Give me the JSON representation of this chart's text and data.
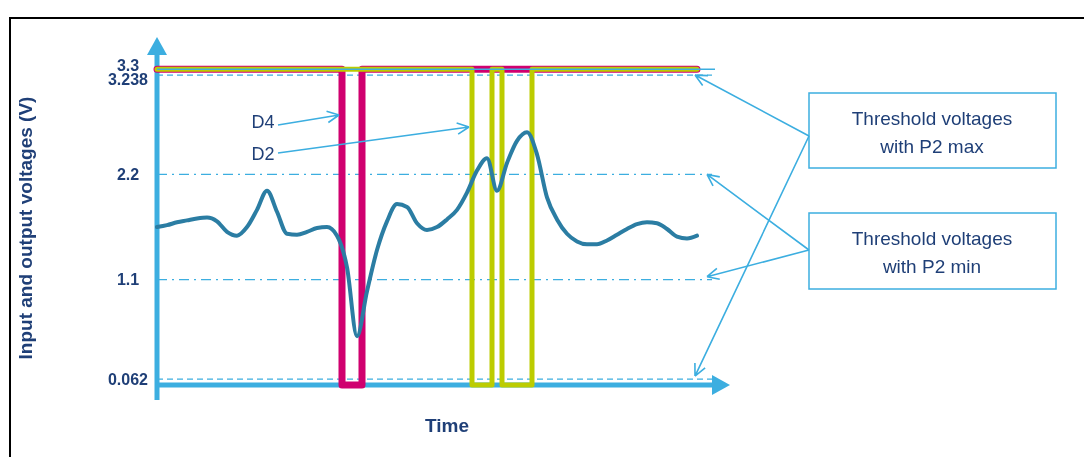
{
  "chart_data": {
    "type": "line",
    "xlabel": "Time",
    "ylabel": "Input and output voltages (V)",
    "categories": [
      null,
      null,
      null,
      null,
      null,
      null,
      null,
      null,
      null,
      null,
      null,
      null,
      null,
      null,
      null,
      null,
      null,
      null,
      null,
      null,
      null,
      null,
      null,
      null,
      null,
      null,
      null,
      null,
      null,
      null,
      null,
      null,
      null,
      null,
      null,
      null,
      null,
      null,
      null,
      null,
      null,
      null,
      null,
      null,
      null,
      null,
      null,
      null,
      null,
      null,
      null,
      null,
      null,
      null,
      null
    ],
    "series": [
      {
        "type": "line",
        "color": "#2b7da3",
        "values": [
          1.65,
          1.67,
          1.7,
          1.72,
          1.74,
          1.75,
          1.71,
          1.6,
          1.56,
          1.65,
          1.83,
          2.03,
          1.81,
          1.58,
          1.57,
          1.6,
          1.64,
          1.65,
          1.56,
          1.23,
          0.51,
          0.98,
          1.41,
          1.71,
          1.89,
          1.86,
          1.69,
          1.62,
          1.65,
          1.73,
          1.83,
          2.01,
          2.24,
          2.37,
          2.03,
          2.32,
          2.55,
          2.64,
          2.41,
          1.96,
          1.73,
          1.58,
          1.5,
          1.47,
          1.47,
          1.51,
          1.57,
          1.63,
          1.68,
          1.7,
          1.69,
          1.63,
          1.55,
          1.53,
          1.56
        ]
      },
      {
        "type": "step",
        "name": "D4",
        "color": "#d0006f",
        "values": [
          3.3,
          3.3,
          3.3,
          3.3,
          3.3,
          3.3,
          3.3,
          3.3,
          3.3,
          3.3,
          3.3,
          3.3,
          3.3,
          3.3,
          3.3,
          3.3,
          3.3,
          3.3,
          3.3,
          0,
          0,
          3.3,
          3.3,
          3.3,
          3.3,
          3.3,
          3.3,
          3.3,
          3.3,
          3.3,
          3.3,
          3.3,
          3.3,
          3.3,
          3.3,
          3.3,
          3.3,
          3.3,
          3.3,
          3.3,
          3.3,
          3.3,
          3.3,
          3.3,
          3.3,
          3.3,
          3.3,
          3.3,
          3.3,
          3.3,
          3.3,
          3.3,
          3.3,
          3.3,
          3.3
        ]
      },
      {
        "type": "step",
        "name": "D2",
        "color": "#bccc00",
        "values": [
          3.3,
          3.3,
          3.3,
          3.3,
          3.3,
          3.3,
          3.3,
          3.3,
          3.3,
          3.3,
          3.3,
          3.3,
          3.3,
          3.3,
          3.3,
          3.3,
          3.3,
          3.3,
          3.3,
          3.3,
          3.3,
          3.3,
          3.3,
          3.3,
          3.3,
          3.3,
          3.3,
          3.3,
          3.3,
          3.3,
          3.3,
          3.3,
          0,
          0,
          3.3,
          0,
          0,
          0,
          3.3,
          3.3,
          3.3,
          3.3,
          3.3,
          3.3,
          3.3,
          3.3,
          3.3,
          3.3,
          3.3,
          3.3,
          3.3,
          3.3,
          3.3,
          3.3,
          3.3
        ]
      }
    ],
    "ylim": [
      0,
      3.5
    ],
    "yticks": [
      3.3,
      3.238,
      2.2,
      1.1,
      0.062
    ],
    "tick_labels": "y",
    "ref_lines": [
      {
        "axis": "y",
        "value": 3.3,
        "color": "#3caee0",
        "line_style": "solid"
      },
      {
        "axis": "y",
        "value": 3.238,
        "color": "#3caee0",
        "line_style": "dashed"
      },
      {
        "axis": "y",
        "value": 2.2,
        "color": "#3caee0",
        "line_style": "dashdot"
      },
      {
        "axis": "y",
        "value": 1.1,
        "color": "#3caee0",
        "line_style": "dashdot"
      },
      {
        "axis": "y",
        "value": 0.062,
        "color": "#3caee0",
        "line_style": "dashed"
      }
    ],
    "annotations": [
      "Threshold voltages with P2 max",
      "Threshold voltages with P2 min"
    ]
  }
}
